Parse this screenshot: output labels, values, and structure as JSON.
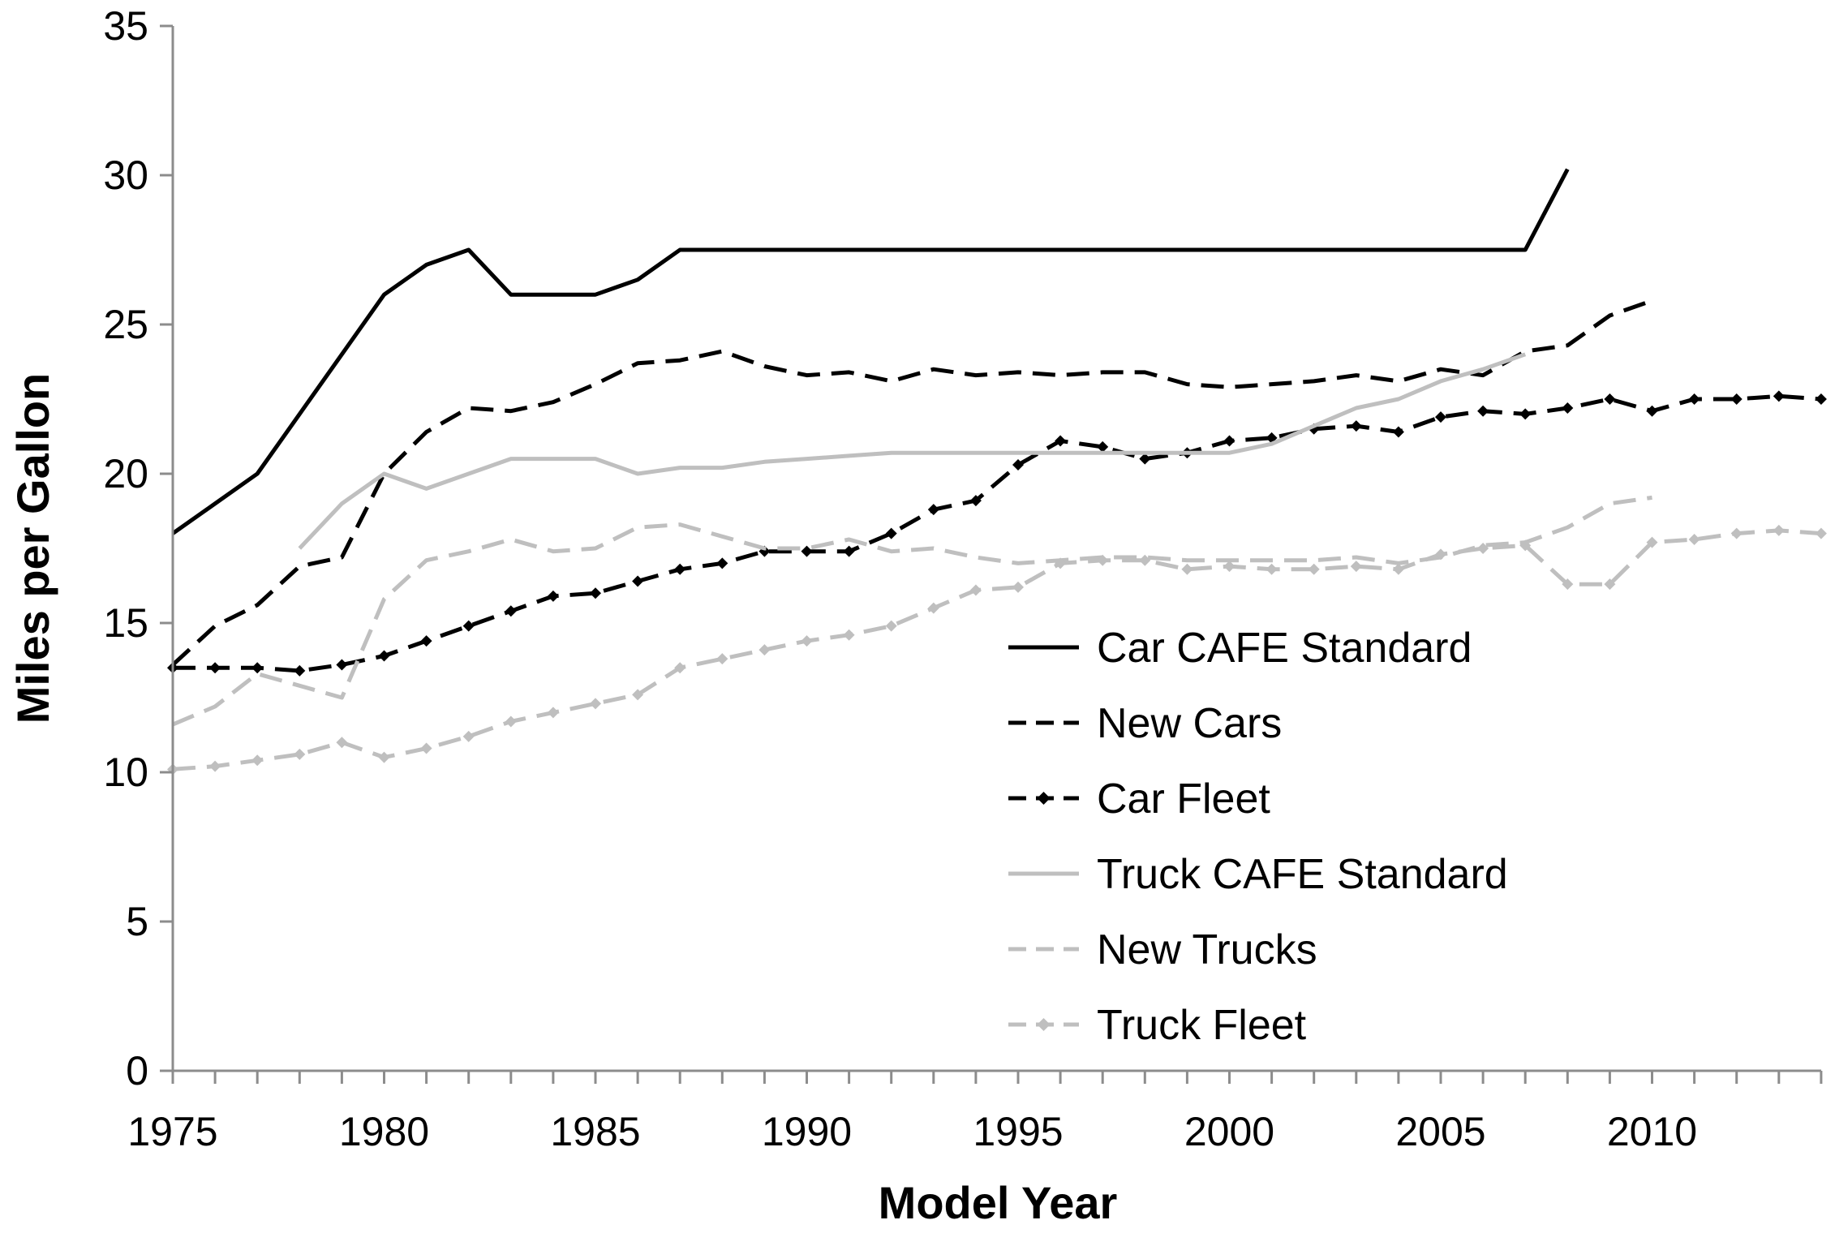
{
  "chart_data": {
    "type": "line",
    "title": "",
    "xlabel": "Model Year",
    "ylabel": "Miles per Gallon",
    "xlim": [
      1975,
      2014
    ],
    "ylim": [
      0,
      35
    ],
    "x_ticks": [
      1975,
      1980,
      1985,
      1990,
      1995,
      2000,
      2005,
      2010
    ],
    "y_ticks": [
      0,
      5,
      10,
      15,
      20,
      25,
      30,
      35
    ],
    "grid": false,
    "legend_position": "center-right",
    "series": [
      {
        "name": "Car CAFE Standard",
        "color": "#000000",
        "dash": "solid",
        "markers": false,
        "x": [
          1975,
          1976,
          1977,
          1978,
          1979,
          1980,
          1981,
          1982,
          1983,
          1984,
          1985,
          1986,
          1987,
          1988,
          1989,
          1990,
          1991,
          1992,
          1993,
          1994,
          1995,
          1996,
          1997,
          1998,
          1999,
          2000,
          2001,
          2002,
          2003,
          2004,
          2005,
          2006,
          2007,
          2008
        ],
        "values": [
          18.0,
          19.0,
          20.0,
          22.0,
          24.0,
          26.0,
          27.0,
          27.5,
          26.0,
          26.0,
          26.0,
          26.5,
          27.5,
          27.5,
          27.5,
          27.5,
          27.5,
          27.5,
          27.5,
          27.5,
          27.5,
          27.5,
          27.5,
          27.5,
          27.5,
          27.5,
          27.5,
          27.5,
          27.5,
          27.5,
          27.5,
          27.5,
          27.5,
          30.2
        ]
      },
      {
        "name": "New Cars",
        "color": "#000000",
        "dash": "dashed",
        "markers": false,
        "x": [
          1975,
          1976,
          1977,
          1978,
          1979,
          1980,
          1981,
          1982,
          1983,
          1984,
          1985,
          1986,
          1987,
          1988,
          1989,
          1990,
          1991,
          1992,
          1993,
          1994,
          1995,
          1996,
          1997,
          1998,
          1999,
          2000,
          2001,
          2002,
          2003,
          2004,
          2005,
          2006,
          2007,
          2008,
          2009,
          2010
        ],
        "values": [
          13.6,
          14.9,
          15.6,
          16.9,
          17.2,
          20.0,
          21.4,
          22.2,
          22.1,
          22.4,
          23.0,
          23.7,
          23.8,
          24.1,
          23.6,
          23.3,
          23.4,
          23.1,
          23.5,
          23.3,
          23.4,
          23.3,
          23.4,
          23.4,
          23.0,
          22.9,
          23.0,
          23.1,
          23.3,
          23.1,
          23.5,
          23.3,
          24.1,
          24.3,
          25.3,
          25.8
        ]
      },
      {
        "name": "Car Fleet",
        "color": "#000000",
        "dash": "dashed",
        "markers": true,
        "x": [
          1975,
          1976,
          1977,
          1978,
          1979,
          1980,
          1981,
          1982,
          1983,
          1984,
          1985,
          1986,
          1987,
          1988,
          1989,
          1990,
          1991,
          1992,
          1993,
          1994,
          1995,
          1996,
          1997,
          1998,
          1999,
          2000,
          2001,
          2002,
          2003,
          2004,
          2005,
          2006,
          2007,
          2008,
          2009,
          2010,
          2011,
          2012,
          2013,
          2014
        ],
        "values": [
          13.5,
          13.5,
          13.5,
          13.4,
          13.6,
          13.9,
          14.4,
          14.9,
          15.4,
          15.9,
          16.0,
          16.4,
          16.8,
          17.0,
          17.4,
          17.4,
          17.4,
          18.0,
          18.8,
          19.1,
          20.3,
          21.1,
          20.9,
          20.5,
          20.7,
          21.1,
          21.2,
          21.5,
          21.6,
          21.4,
          21.9,
          22.1,
          22.0,
          22.2,
          22.5,
          22.1,
          22.5,
          22.5,
          22.6,
          22.5
        ]
      },
      {
        "name": "Truck CAFE Standard",
        "color": "#bfbfbf",
        "dash": "solid",
        "markers": false,
        "x": [
          1978,
          1979,
          1980,
          1981,
          1982,
          1983,
          1984,
          1985,
          1986,
          1987,
          1988,
          1989,
          1990,
          1991,
          1992,
          1993,
          1994,
          1995,
          1996,
          1997,
          1998,
          1999,
          2000,
          2001,
          2002,
          2003,
          2004,
          2005,
          2006,
          2007
        ],
        "values": [
          17.5,
          19.0,
          20.0,
          19.5,
          20.0,
          20.5,
          20.5,
          20.5,
          20.0,
          20.2,
          20.2,
          20.4,
          20.5,
          20.6,
          20.7,
          20.7,
          20.7,
          20.7,
          20.7,
          20.7,
          20.7,
          20.7,
          20.7,
          21.0,
          21.6,
          22.2,
          22.5,
          23.1,
          23.5,
          24.0
        ]
      },
      {
        "name": "New Trucks",
        "color": "#bfbfbf",
        "dash": "dashed",
        "markers": false,
        "x": [
          1975,
          1976,
          1977,
          1978,
          1979,
          1980,
          1981,
          1982,
          1983,
          1984,
          1985,
          1986,
          1987,
          1988,
          1989,
          1990,
          1991,
          1992,
          1993,
          1994,
          1995,
          1996,
          1997,
          1998,
          1999,
          2000,
          2001,
          2002,
          2003,
          2004,
          2005,
          2006,
          2007,
          2008,
          2009,
          2010
        ],
        "values": [
          11.6,
          12.2,
          13.3,
          12.9,
          12.5,
          15.8,
          17.1,
          17.4,
          17.8,
          17.4,
          17.5,
          18.2,
          18.3,
          17.9,
          17.5,
          17.5,
          17.8,
          17.4,
          17.5,
          17.2,
          17.0,
          17.1,
          17.2,
          17.2,
          17.1,
          17.1,
          17.1,
          17.1,
          17.2,
          17.0,
          17.2,
          17.6,
          17.7,
          18.2,
          19.0,
          19.2
        ]
      },
      {
        "name": "Truck Fleet",
        "color": "#bfbfbf",
        "dash": "dashed",
        "markers": true,
        "x": [
          1975,
          1976,
          1977,
          1978,
          1979,
          1980,
          1981,
          1982,
          1983,
          1984,
          1985,
          1986,
          1987,
          1988,
          1989,
          1990,
          1991,
          1992,
          1993,
          1994,
          1995,
          1996,
          1997,
          1998,
          1999,
          2000,
          2001,
          2002,
          2003,
          2004,
          2005,
          2006,
          2007,
          2008,
          2009,
          2010,
          2011,
          2012,
          2013,
          2014
        ],
        "values": [
          10.1,
          10.2,
          10.4,
          10.6,
          11.0,
          10.5,
          10.8,
          11.2,
          11.7,
          12.0,
          12.3,
          12.6,
          13.5,
          13.8,
          14.1,
          14.4,
          14.6,
          14.9,
          15.5,
          16.1,
          16.2,
          17.0,
          17.1,
          17.1,
          16.8,
          16.9,
          16.8,
          16.8,
          16.9,
          16.8,
          17.3,
          17.5,
          17.6,
          16.3,
          16.3,
          17.7,
          17.8,
          18.0,
          18.1,
          18.0
        ]
      }
    ]
  }
}
